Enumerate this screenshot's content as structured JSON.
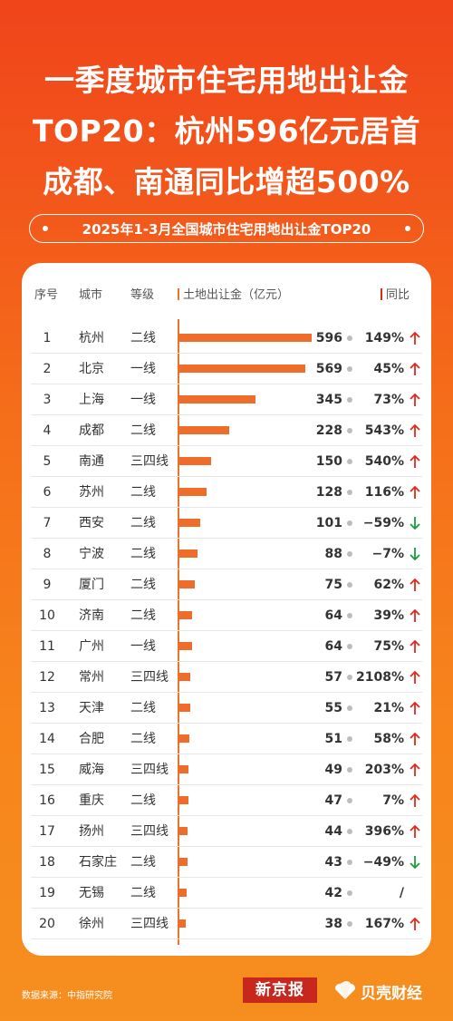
{
  "headline": {
    "line1": "一季度城市住宅用地出让金",
    "line2": "TOP20：杭州596亿元居首",
    "line3": "成都、南通同比增超500%"
  },
  "subtitle": "2025年1-3月全国城市住宅用地出让金TOP20",
  "columns": {
    "rank": "序号",
    "city": "城市",
    "tier": "等级",
    "revenue": "土地出让金（亿元）",
    "yoy": "同比"
  },
  "chart_data": {
    "type": "bar",
    "title": "2025年1-3月全国城市住宅用地出让金TOP20",
    "categories": [
      "杭州",
      "北京",
      "上海",
      "成都",
      "南通",
      "苏州",
      "西安",
      "宁波",
      "厦门",
      "济南",
      "广州",
      "常州",
      "天津",
      "合肥",
      "威海",
      "重庆",
      "扬州",
      "石家庄",
      "无锡",
      "徐州"
    ],
    "series": [
      {
        "name": "土地出让金（亿元）",
        "values": [
          596,
          569,
          345,
          228,
          150,
          128,
          101,
          88,
          75,
          64,
          64,
          57,
          55,
          51,
          49,
          47,
          44,
          43,
          42,
          38
        ]
      }
    ],
    "ylabel": "土地出让金（亿元）",
    "orientation": "horizontal",
    "xlim": [
      0,
      596
    ]
  },
  "rows": [
    {
      "rank": "1",
      "city": "杭州",
      "tier": "二线",
      "value": "596",
      "yoy": "149%",
      "dir": "up"
    },
    {
      "rank": "2",
      "city": "北京",
      "tier": "一线",
      "value": "569",
      "yoy": "45%",
      "dir": "up"
    },
    {
      "rank": "3",
      "city": "上海",
      "tier": "一线",
      "value": "345",
      "yoy": "73%",
      "dir": "up"
    },
    {
      "rank": "4",
      "city": "成都",
      "tier": "二线",
      "value": "228",
      "yoy": "543%",
      "dir": "up"
    },
    {
      "rank": "5",
      "city": "南通",
      "tier": "三四线",
      "value": "150",
      "yoy": "540%",
      "dir": "up"
    },
    {
      "rank": "6",
      "city": "苏州",
      "tier": "二线",
      "value": "128",
      "yoy": "116%",
      "dir": "up"
    },
    {
      "rank": "7",
      "city": "西安",
      "tier": "二线",
      "value": "101",
      "yoy": "−59%",
      "dir": "down"
    },
    {
      "rank": "8",
      "city": "宁波",
      "tier": "二线",
      "value": "88",
      "yoy": "−7%",
      "dir": "down"
    },
    {
      "rank": "9",
      "city": "厦门",
      "tier": "二线",
      "value": "75",
      "yoy": "62%",
      "dir": "up"
    },
    {
      "rank": "10",
      "city": "济南",
      "tier": "二线",
      "value": "64",
      "yoy": "39%",
      "dir": "up"
    },
    {
      "rank": "11",
      "city": "广州",
      "tier": "一线",
      "value": "64",
      "yoy": "75%",
      "dir": "up"
    },
    {
      "rank": "12",
      "city": "常州",
      "tier": "三四线",
      "value": "57",
      "yoy": "2108%",
      "dir": "up"
    },
    {
      "rank": "13",
      "city": "天津",
      "tier": "二线",
      "value": "55",
      "yoy": "21%",
      "dir": "up"
    },
    {
      "rank": "14",
      "city": "合肥",
      "tier": "二线",
      "value": "51",
      "yoy": "58%",
      "dir": "up"
    },
    {
      "rank": "15",
      "city": "威海",
      "tier": "三四线",
      "value": "49",
      "yoy": "203%",
      "dir": "up"
    },
    {
      "rank": "16",
      "city": "重庆",
      "tier": "二线",
      "value": "47",
      "yoy": "7%",
      "dir": "up"
    },
    {
      "rank": "17",
      "city": "扬州",
      "tier": "三四线",
      "value": "44",
      "yoy": "396%",
      "dir": "up"
    },
    {
      "rank": "18",
      "city": "石家庄",
      "tier": "二线",
      "value": "43",
      "yoy": "−49%",
      "dir": "down"
    },
    {
      "rank": "19",
      "city": "无锡",
      "tier": "二线",
      "value": "42",
      "yoy": "/",
      "dir": "none"
    },
    {
      "rank": "20",
      "city": "徐州",
      "tier": "三四线",
      "value": "38",
      "yoy": "167%",
      "dir": "up"
    }
  ],
  "colors": {
    "bar": "#ee6d2a",
    "up": "#e02a1e",
    "down": "#1c9c3c",
    "background_top": "#f0441b",
    "background_bottom": "#f68f1f"
  },
  "footer": {
    "source": "数据来源：中指研究院",
    "logo_left": "新京报",
    "logo_right": "贝壳财经"
  }
}
